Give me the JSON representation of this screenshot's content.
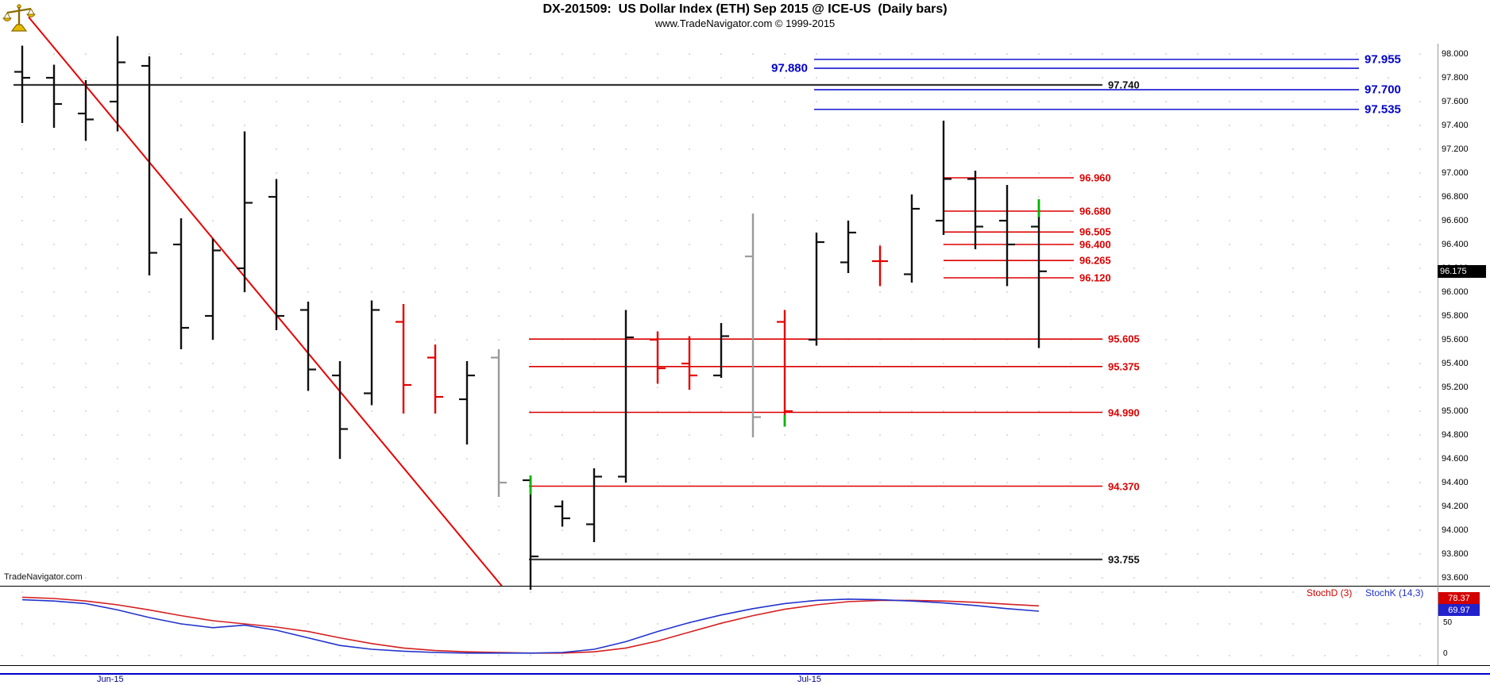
{
  "header": {
    "title": "DX-201509:  US Dollar Index (ETH) Sep 2015 @ ICE-US  (Daily bars)",
    "subtitle": "www.TradeNavigator.com © 1999-2015"
  },
  "footer": {
    "watermark": "TradeNavigator.com"
  },
  "colors": {
    "bar_up": "#101010",
    "bar_down": "#e40000",
    "bar_neutral": "#9a9a9a",
    "bar_accent": "#00b400",
    "level_blue": "#0000cc",
    "level_red": "#dd0000",
    "level_dark": "#333333",
    "trendline": "#e80000",
    "stoch_d": "#d42020",
    "stoch_k": "#2233cc",
    "grid_dot": "#c4c4c4",
    "bottom_line": "#0000cc"
  },
  "price_axis": {
    "last_badge": "96.175",
    "labels": [
      "98.000",
      "97.800",
      "97.600",
      "97.400",
      "97.200",
      "97.000",
      "96.800",
      "96.600",
      "96.400",
      "96.200",
      "96.000",
      "95.800",
      "95.600",
      "95.400",
      "95.200",
      "95.000",
      "94.800",
      "94.600",
      "94.400",
      "94.200",
      "94.000",
      "93.800",
      "93.600"
    ]
  },
  "x_axis": {
    "labels": [
      {
        "text": "Jun-15",
        "bar_index": 3
      },
      {
        "text": "Jul-15",
        "bar_index": 25
      }
    ]
  },
  "stoch": {
    "d_label": "StochD (3)",
    "k_label": "StochK (14,3)",
    "d_value": "78.37",
    "k_value": "69.97",
    "scale_mid": "50",
    "scale_min": "0"
  },
  "chart_data": {
    "type": "ohlc-bar",
    "title": "DX-201509: US Dollar Index (ETH) Sep 2015 @ ICE-US (Daily bars)",
    "y_axis": {
      "min": 93.6,
      "max": 98.0,
      "step": 0.2,
      "grid": "dotted"
    },
    "x_labels": [
      {
        "text": "Jun-15",
        "bar_index": 3
      },
      {
        "text": "Jul-15",
        "bar_index": 25
      }
    ],
    "bars": [
      {
        "o": 97.85,
        "h": 98.07,
        "l": 97.42,
        "c": 97.8,
        "color": "black"
      },
      {
        "o": 97.8,
        "h": 97.91,
        "l": 97.38,
        "c": 97.58,
        "color": "black"
      },
      {
        "o": 97.5,
        "h": 97.78,
        "l": 97.27,
        "c": 97.45,
        "color": "black"
      },
      {
        "o": 97.6,
        "h": 98.15,
        "l": 97.35,
        "c": 97.93,
        "color": "black"
      },
      {
        "o": 97.9,
        "h": 97.98,
        "l": 96.14,
        "c": 96.33,
        "color": "black"
      },
      {
        "o": 96.4,
        "h": 96.62,
        "l": 95.52,
        "c": 95.7,
        "color": "black"
      },
      {
        "o": 95.8,
        "h": 96.45,
        "l": 95.6,
        "c": 96.35,
        "color": "black"
      },
      {
        "o": 96.2,
        "h": 97.35,
        "l": 96.0,
        "c": 96.75,
        "color": "black"
      },
      {
        "o": 96.8,
        "h": 96.95,
        "l": 95.68,
        "c": 95.8,
        "color": "black"
      },
      {
        "o": 95.85,
        "h": 95.92,
        "l": 95.17,
        "c": 95.35,
        "color": "black"
      },
      {
        "o": 95.3,
        "h": 95.42,
        "l": 94.6,
        "c": 94.85,
        "color": "black"
      },
      {
        "o": 95.15,
        "h": 95.93,
        "l": 95.05,
        "c": 95.85,
        "color": "black"
      },
      {
        "o": 95.75,
        "h": 95.9,
        "l": 94.98,
        "c": 95.22,
        "color": "red"
      },
      {
        "o": 95.45,
        "h": 95.56,
        "l": 94.98,
        "c": 95.12,
        "color": "red"
      },
      {
        "o": 95.1,
        "h": 95.42,
        "l": 94.72,
        "c": 95.3,
        "color": "black"
      },
      {
        "o": 95.45,
        "h": 95.52,
        "l": 94.28,
        "c": 94.4,
        "color": "gray"
      },
      {
        "o": 94.42,
        "h": 94.46,
        "l": 93.5,
        "c": 93.78,
        "color": "black",
        "accent": [
          94.3,
          94.46
        ]
      },
      {
        "o": 94.2,
        "h": 94.25,
        "l": 94.03,
        "c": 94.1,
        "color": "black"
      },
      {
        "o": 94.05,
        "h": 94.52,
        "l": 93.9,
        "c": 94.45,
        "color": "black"
      },
      {
        "o": 94.45,
        "h": 95.85,
        "l": 94.4,
        "c": 95.62,
        "color": "black"
      },
      {
        "o": 95.6,
        "h": 95.67,
        "l": 95.23,
        "c": 95.36,
        "color": "red"
      },
      {
        "o": 95.4,
        "h": 95.63,
        "l": 95.18,
        "c": 95.3,
        "color": "red"
      },
      {
        "o": 95.3,
        "h": 95.74,
        "l": 95.28,
        "c": 95.63,
        "color": "black"
      },
      {
        "o": 96.3,
        "h": 96.66,
        "l": 94.78,
        "c": 94.95,
        "color": "gray"
      },
      {
        "o": 95.75,
        "h": 95.85,
        "l": 94.87,
        "c": 95.0,
        "color": "red",
        "accent": [
          94.87,
          94.97
        ]
      },
      {
        "o": 95.6,
        "h": 96.5,
        "l": 95.55,
        "c": 96.42,
        "color": "black"
      },
      {
        "o": 96.25,
        "h": 96.6,
        "l": 96.16,
        "c": 96.5,
        "color": "black"
      },
      {
        "o": 96.26,
        "h": 96.39,
        "l": 96.05,
        "c": 96.26,
        "color": "red"
      },
      {
        "o": 96.15,
        "h": 96.82,
        "l": 96.08,
        "c": 96.7,
        "color": "black"
      },
      {
        "o": 96.6,
        "h": 97.44,
        "l": 96.48,
        "c": 96.95,
        "color": "black"
      },
      {
        "o": 96.95,
        "h": 97.02,
        "l": 96.36,
        "c": 96.55,
        "color": "black"
      },
      {
        "o": 96.6,
        "h": 96.9,
        "l": 96.05,
        "c": 96.4,
        "color": "black"
      },
      {
        "o": 96.55,
        "h": 96.78,
        "l": 95.53,
        "c": 96.175,
        "color": "black",
        "accent": [
          96.63,
          96.78
        ]
      }
    ],
    "levels": [
      {
        "price": 97.955,
        "label": "97.955",
        "style": "blue",
        "span": "blue",
        "side": "right"
      },
      {
        "price": 97.88,
        "label": "97.880",
        "style": "blue",
        "span": "blue",
        "side": "left"
      },
      {
        "price": 97.74,
        "label": "97.740",
        "style": "dark",
        "span": "full",
        "side": "right"
      },
      {
        "price": 97.7,
        "label": "97.700",
        "style": "blue",
        "span": "blue",
        "side": "right"
      },
      {
        "price": 97.535,
        "label": "97.535",
        "style": "blue",
        "span": "blue",
        "side": "right"
      },
      {
        "price": 96.96,
        "label": "96.960",
        "style": "red",
        "span": "short",
        "side": "right"
      },
      {
        "price": 96.68,
        "label": "96.680",
        "style": "red",
        "span": "short",
        "side": "right"
      },
      {
        "price": 96.505,
        "label": "96.505",
        "style": "red",
        "span": "short",
        "side": "right"
      },
      {
        "price": 96.4,
        "label": "96.400",
        "style": "red",
        "span": "short",
        "side": "right"
      },
      {
        "price": 96.265,
        "label": "96.265",
        "style": "red",
        "span": "short",
        "side": "right"
      },
      {
        "price": 96.12,
        "label": "96.120",
        "style": "red",
        "span": "short",
        "side": "right"
      },
      {
        "price": 95.605,
        "label": "95.605",
        "style": "red",
        "span": "wide",
        "side": "right"
      },
      {
        "price": 95.375,
        "label": "95.375",
        "style": "red",
        "span": "wide",
        "side": "right"
      },
      {
        "price": 94.99,
        "label": "94.990",
        "style": "red",
        "span": "wide",
        "side": "right"
      },
      {
        "price": 94.37,
        "label": "94.370",
        "style": "red",
        "span": "wide",
        "side": "right"
      },
      {
        "price": 93.755,
        "label": "93.755",
        "style": "dark",
        "span": "wide",
        "side": "right"
      }
    ],
    "trendline": {
      "x1_bar": 0.2,
      "price1": 98.31,
      "x2_bar": 15.1,
      "price2": 93.53,
      "color": "red"
    },
    "stochastic": {
      "d_name": "StochD (3)",
      "k_name": "StochK (14,3)",
      "range": [
        0,
        100
      ],
      "d": [
        92,
        90,
        86,
        80,
        72,
        63,
        55,
        50,
        45,
        38,
        28,
        19,
        12,
        8,
        6,
        5,
        4,
        4,
        6,
        12,
        23,
        37,
        51,
        63,
        73,
        80,
        85,
        87,
        87,
        86,
        84,
        81,
        78.37
      ],
      "k": [
        88,
        86,
        82,
        72,
        60,
        50,
        44,
        48,
        40,
        28,
        16,
        10,
        7,
        5,
        4,
        4,
        4,
        5,
        10,
        22,
        38,
        52,
        64,
        74,
        82,
        87,
        89,
        88,
        86,
        83,
        79,
        74,
        69.97
      ]
    }
  }
}
